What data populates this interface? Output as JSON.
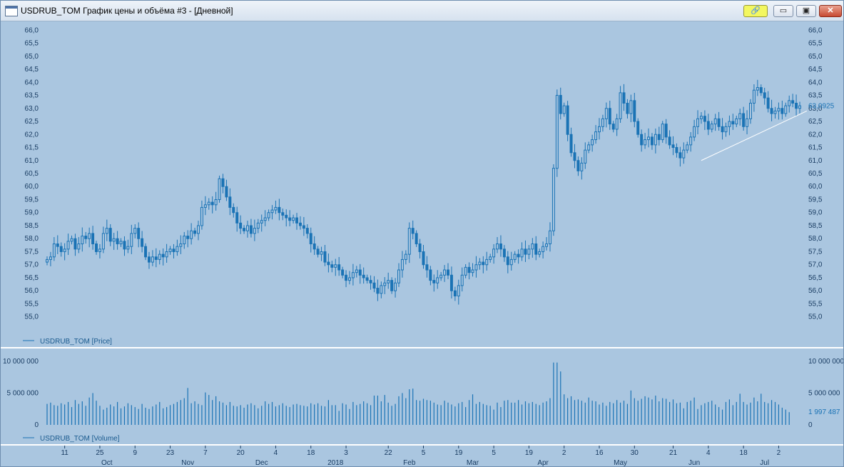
{
  "window": {
    "title": "USDRUB_TOM График цены и объёма #3 - [Дневной]",
    "buttons": {
      "link": "🔗",
      "minimize": "▭",
      "maximize": "▣",
      "close": "✕"
    }
  },
  "colors": {
    "background": "#aac6e0",
    "series": "#1a73b5",
    "trendline": "#ffffff",
    "divider": "#ffffff"
  },
  "chart_data": [
    {
      "type": "candlestick",
      "legend": "USDRUB_TOM [Price]",
      "last_value_label": "63,0925",
      "last_value": 63.0925,
      "ylim": [
        54.8,
        66.2
      ],
      "y_ticks": [
        "55,0",
        "55,5",
        "56,0",
        "56,5",
        "57,0",
        "57,5",
        "58,0",
        "58,5",
        "59,0",
        "59,5",
        "60,0",
        "60,5",
        "61,0",
        "61,5",
        "62,0",
        "62,5",
        "63,0",
        "63,5",
        "64,0",
        "64,5",
        "65,0",
        "65,5",
        "66,0"
      ],
      "trendline": {
        "from": {
          "index": 186,
          "value": 61.0
        },
        "to": {
          "index": 216,
          "value": 62.9
        }
      },
      "closes": [
        57.2,
        57.3,
        57.8,
        57.7,
        57.5,
        57.6,
        57.9,
        58.0,
        57.6,
        57.8,
        58.1,
        58.0,
        58.2,
        57.8,
        57.5,
        57.6,
        58.2,
        58.4,
        57.9,
        58.0,
        57.8,
        57.9,
        57.6,
        57.7,
        58.2,
        58.4,
        58.0,
        57.7,
        57.3,
        57.1,
        57.3,
        57.2,
        57.4,
        57.3,
        57.5,
        57.6,
        57.5,
        57.7,
        57.8,
        58.1,
        58.0,
        58.3,
        58.2,
        58.5,
        59.2,
        59.3,
        59.4,
        59.3,
        59.5,
        60.3,
        60.0,
        59.6,
        59.2,
        59.0,
        58.6,
        58.4,
        58.3,
        58.5,
        58.2,
        58.4,
        58.6,
        58.7,
        58.8,
        59.0,
        59.1,
        59.2,
        59.0,
        58.9,
        58.8,
        58.7,
        58.8,
        58.6,
        58.5,
        58.4,
        58.2,
        57.8,
        57.6,
        57.4,
        57.5,
        57.1,
        57.0,
        56.9,
        57.0,
        56.8,
        56.6,
        56.4,
        56.5,
        56.7,
        56.8,
        56.6,
        56.5,
        56.4,
        56.3,
        56.1,
        55.9,
        56.2,
        56.3,
        56.4,
        56.0,
        56.3,
        56.8,
        57.2,
        57.4,
        58.4,
        58.2,
        57.8,
        57.5,
        57.0,
        56.8,
        56.4,
        56.3,
        56.5,
        56.6,
        56.8,
        56.6,
        56.0,
        55.8,
        56.2,
        56.6,
        56.9,
        56.7,
        56.8,
        57.0,
        57.1,
        57.0,
        57.2,
        57.3,
        57.6,
        57.8,
        57.6,
        57.3,
        57.0,
        57.2,
        57.4,
        57.3,
        57.6,
        57.4,
        57.6,
        57.8,
        57.4,
        57.5,
        57.7,
        57.8,
        58.3,
        60.7,
        63.5,
        62.8,
        63.1,
        62.0,
        61.3,
        61.0,
        60.6,
        60.9,
        61.4,
        61.6,
        61.8,
        62.1,
        62.3,
        62.6,
        63.0,
        62.4,
        62.2,
        62.6,
        63.6,
        63.2,
        62.8,
        63.3,
        62.5,
        62.0,
        61.6,
        61.8,
        61.9,
        61.6,
        62.0,
        61.8,
        62.4,
        61.9,
        61.6,
        61.5,
        61.3,
        61.1,
        61.4,
        61.6,
        61.9,
        62.3,
        62.6,
        62.7,
        62.5,
        62.2,
        62.4,
        62.6,
        62.3,
        62.1,
        62.3,
        62.5,
        62.4,
        62.6,
        62.8,
        62.3,
        62.6,
        63.2,
        63.7,
        63.8,
        63.6,
        63.4,
        63.0,
        62.8,
        62.9,
        63.0,
        62.8,
        63.1,
        63.3,
        63.2,
        63.0,
        63.1
      ]
    },
    {
      "type": "bar",
      "legend": "USDRUB_TOM [Volume]",
      "last_value_label": "1 997 487",
      "last_value": 1997487,
      "ylim": [
        0,
        11000000
      ],
      "y_ticks": [
        {
          "label": "0",
          "value": 0
        },
        {
          "label": "5 000 000",
          "value": 5000000
        },
        {
          "label": "10 000 000",
          "value": 10000000
        }
      ],
      "values": [
        3300000,
        3500000,
        3100000,
        3000000,
        3400000,
        3200000,
        3600000,
        2800000,
        3900000,
        3300000,
        3700000,
        3000000,
        4300000,
        5000000,
        3800000,
        3000000,
        2400000,
        2700000,
        3200000,
        2900000,
        3600000,
        2600000,
        2900000,
        3400000,
        3100000,
        2800000,
        2500000,
        3300000,
        2700000,
        2500000,
        2900000,
        3200000,
        3600000,
        2600000,
        2800000,
        3100000,
        3300000,
        3600000,
        3900000,
        4200000,
        5800000,
        3400000,
        3700000,
        3300000,
        3100000,
        5100000,
        4700000,
        3900000,
        4500000,
        3700000,
        3500000,
        3100000,
        3600000,
        3000000,
        2900000,
        3100000,
        2700000,
        3200000,
        3400000,
        3100000,
        2600000,
        3000000,
        3700000,
        3300000,
        3600000,
        2900000,
        3100000,
        3400000,
        3000000,
        2800000,
        3200000,
        3300000,
        3100000,
        3000000,
        2900000,
        3400000,
        3200000,
        3400000,
        3000000,
        2900000,
        3900000,
        3100000,
        3100000,
        2200000,
        3400000,
        3200000,
        2500000,
        3600000,
        3100000,
        3300000,
        3700000,
        3400000,
        3100000,
        4600000,
        4600000,
        3700000,
        4700000,
        3500000,
        3000000,
        3300000,
        4500000,
        5000000,
        4200000,
        5600000,
        5700000,
        3900000,
        3800000,
        4100000,
        3900000,
        3800000,
        3500000,
        3200000,
        3100000,
        3800000,
        3500000,
        3200000,
        2900000,
        3400000,
        3600000,
        2800000,
        3900000,
        4800000,
        3300000,
        3600000,
        3300000,
        3100000,
        3000000,
        2400000,
        3500000,
        2800000,
        3800000,
        3900000,
        3500000,
        3500000,
        3900000,
        3200000,
        3700000,
        3400000,
        3600000,
        3300000,
        3100000,
        3500000,
        3700000,
        4200000,
        9800000,
        9800000,
        8400000,
        4800000,
        4200000,
        4500000,
        3900000,
        4000000,
        3800000,
        3500000,
        4300000,
        3800000,
        3700000,
        3200000,
        3500000,
        3000000,
        3600000,
        3400000,
        3900000,
        3500000,
        3800000,
        3300000,
        5400000,
        4200000,
        3800000,
        4100000,
        4500000,
        4300000,
        4000000,
        4600000,
        3700000,
        4200000,
        4100000,
        3600000,
        4000000,
        3400000,
        3500000,
        2600000,
        3600000,
        3800000,
        4300000,
        2500000,
        3100000,
        3400000,
        3600000,
        3800000,
        3200000,
        2800000,
        2400000,
        3600000,
        4000000,
        3100000,
        3600000,
        4900000,
        3600000,
        3200000,
        3500000,
        4300000,
        3700000,
        4900000,
        3600000,
        3400000,
        3900000,
        3600000,
        3200000,
        2700000,
        2400000,
        2000000
      ]
    }
  ],
  "x_axis": {
    "day_ticks": [
      {
        "label": "11",
        "index": 5
      },
      {
        "label": "25",
        "index": 15
      },
      {
        "label": "9",
        "index": 25
      },
      {
        "label": "23",
        "index": 35
      },
      {
        "label": "7",
        "index": 45
      },
      {
        "label": "20",
        "index": 55
      },
      {
        "label": "4",
        "index": 65
      },
      {
        "label": "18",
        "index": 75
      },
      {
        "label": "3",
        "index": 85
      },
      {
        "label": "22",
        "index": 97
      },
      {
        "label": "5",
        "index": 107
      },
      {
        "label": "19",
        "index": 117
      },
      {
        "label": "5",
        "index": 127
      },
      {
        "label": "19",
        "index": 137
      },
      {
        "label": "2",
        "index": 147
      },
      {
        "label": "16",
        "index": 157
      },
      {
        "label": "30",
        "index": 167
      },
      {
        "label": "21",
        "index": 178
      },
      {
        "label": "4",
        "index": 188
      },
      {
        "label": "18",
        "index": 198
      },
      {
        "label": "2",
        "index": 208
      }
    ],
    "month_labels": [
      {
        "label": "Oct",
        "index": 17
      },
      {
        "label": "Nov",
        "index": 40
      },
      {
        "label": "Dec",
        "index": 61
      },
      {
        "label": "2018",
        "index": 82
      },
      {
        "label": "Feb",
        "index": 103
      },
      {
        "label": "Mar",
        "index": 121
      },
      {
        "label": "Apr",
        "index": 141
      },
      {
        "label": "May",
        "index": 163
      },
      {
        "label": "Jun",
        "index": 184
      },
      {
        "label": "Jul",
        "index": 204
      }
    ]
  }
}
